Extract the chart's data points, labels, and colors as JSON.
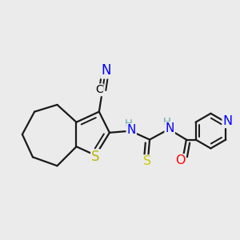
{
  "bg_color": "#ebebeb",
  "atom_colors": {
    "N": "#0000ff",
    "S_thio": "#b8b800",
    "S_thio2": "#cccc00",
    "O": "#ff0000",
    "C": "#000000",
    "H": "#5fa8a8"
  },
  "bond_color": "#1a1a1a",
  "bond_width": 1.6,
  "font_size_atoms": 11,
  "font_size_H": 9.5,
  "font_size_CN": 10
}
